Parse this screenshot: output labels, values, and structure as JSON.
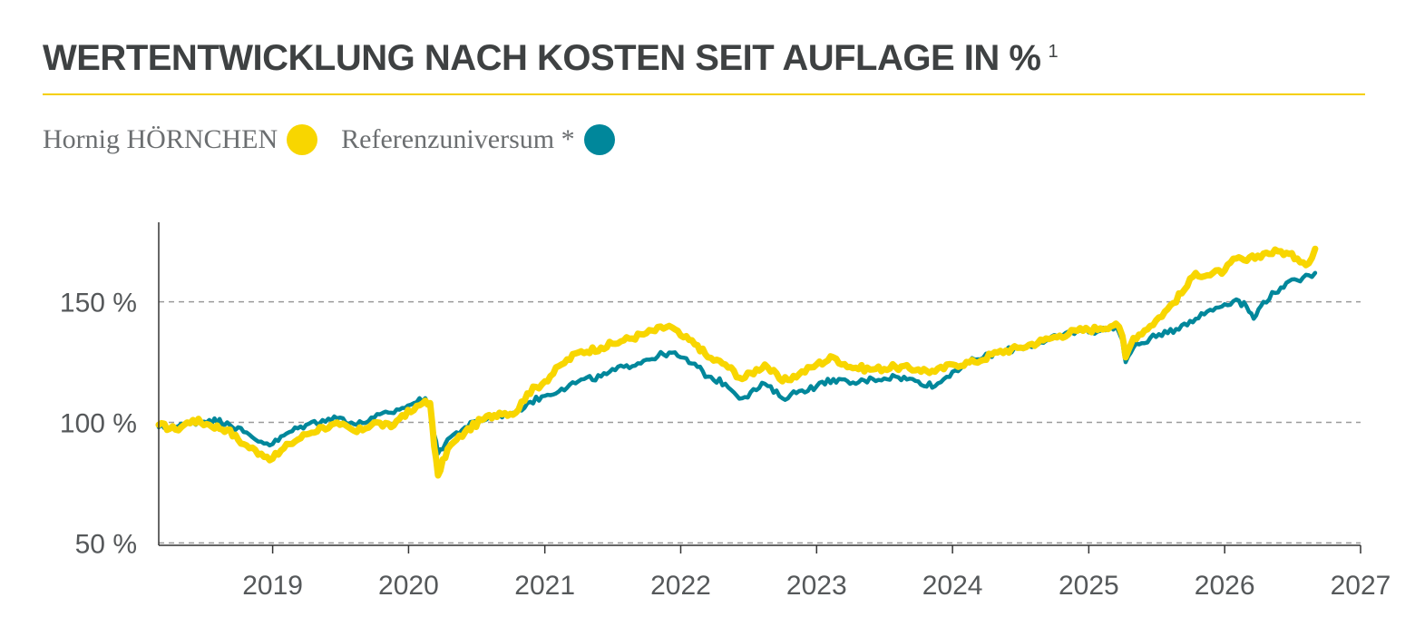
{
  "header": {
    "title": "WERTENTWICKLUNG NACH KOSTEN SEIT AUFLAGE IN %",
    "footnote": "1"
  },
  "colors": {
    "fund": "#f8d600",
    "reference": "#00879b",
    "accent_rule": "#f5cf00",
    "grid": "#9a9a9a",
    "axis": "#333333"
  },
  "legend": {
    "items": [
      {
        "label": "Hornig HÖRNCHEN",
        "color": "#f8d600"
      },
      {
        "label": "Referenzuniversum *",
        "color": "#00879b"
      }
    ]
  },
  "chart_data": {
    "type": "line",
    "xlim": [
      "2018-03-01",
      "2027-01-01"
    ],
    "ylim": [
      49,
      183
    ],
    "grid": "horizontal-dashed",
    "y_ticks": [
      {
        "value": 50,
        "label": "50 %"
      },
      {
        "value": 100,
        "label": "100 %"
      },
      {
        "value": 150,
        "label": "150 %"
      }
    ],
    "x_ticks": [
      {
        "value": "2019-01-01",
        "label": "2019"
      },
      {
        "value": "2020-01-01",
        "label": "2020"
      },
      {
        "value": "2021-01-01",
        "label": "2021"
      },
      {
        "value": "2022-01-01",
        "label": "2022"
      },
      {
        "value": "2023-01-01",
        "label": "2023"
      },
      {
        "value": "2024-01-01",
        "label": "2024"
      },
      {
        "value": "2025-01-01",
        "label": "2025"
      },
      {
        "value": "2026-01-01",
        "label": "2026"
      },
      {
        "value": "2027-01-01",
        "label": "2027"
      }
    ],
    "series": [
      {
        "name": "Hornig HÖRNCHEN",
        "color": "#f8d600",
        "points": [
          [
            "2018-03-01",
            99
          ],
          [
            "2018-04-15",
            97
          ],
          [
            "2018-06-01",
            101
          ],
          [
            "2018-07-15",
            99
          ],
          [
            "2018-09-01",
            97
          ],
          [
            "2018-10-15",
            91
          ],
          [
            "2018-12-01",
            87
          ],
          [
            "2019-01-01",
            85
          ],
          [
            "2019-02-15",
            91
          ],
          [
            "2019-04-01",
            95
          ],
          [
            "2019-05-15",
            98
          ],
          [
            "2019-07-01",
            99
          ],
          [
            "2019-08-15",
            96
          ],
          [
            "2019-10-01",
            100
          ],
          [
            "2019-11-15",
            98
          ],
          [
            "2019-12-15",
            103
          ],
          [
            "2020-01-15",
            105
          ],
          [
            "2020-02-15",
            109
          ],
          [
            "2020-02-28",
            108
          ],
          [
            "2020-03-10",
            90
          ],
          [
            "2020-03-20",
            78
          ],
          [
            "2020-04-15",
            89
          ],
          [
            "2020-06-01",
            96
          ],
          [
            "2020-07-15",
            101
          ],
          [
            "2020-09-01",
            104
          ],
          [
            "2020-10-15",
            104
          ],
          [
            "2020-11-15",
            112
          ],
          [
            "2021-01-01",
            117
          ],
          [
            "2021-02-15",
            124
          ],
          [
            "2021-04-01",
            129
          ],
          [
            "2021-06-01",
            131
          ],
          [
            "2021-08-01",
            134
          ],
          [
            "2021-10-01",
            137
          ],
          [
            "2021-12-01",
            140
          ],
          [
            "2022-01-01",
            136
          ],
          [
            "2022-02-15",
            132
          ],
          [
            "2022-03-15",
            127
          ],
          [
            "2022-05-01",
            124
          ],
          [
            "2022-06-15",
            118
          ],
          [
            "2022-08-15",
            124
          ],
          [
            "2022-10-01",
            117
          ],
          [
            "2022-11-15",
            120
          ],
          [
            "2023-01-01",
            124
          ],
          [
            "2023-02-15",
            127
          ],
          [
            "2023-04-01",
            123
          ],
          [
            "2023-06-01",
            122
          ],
          [
            "2023-08-01",
            123
          ],
          [
            "2023-10-01",
            122
          ],
          [
            "2023-11-15",
            121
          ],
          [
            "2024-01-01",
            124
          ],
          [
            "2024-03-01",
            125
          ],
          [
            "2024-05-01",
            129
          ],
          [
            "2024-07-01",
            131
          ],
          [
            "2024-09-01",
            134
          ],
          [
            "2024-10-15",
            136
          ],
          [
            "2024-12-01",
            138
          ],
          [
            "2025-02-01",
            139
          ],
          [
            "2025-03-15",
            141
          ],
          [
            "2025-04-01",
            136
          ],
          [
            "2025-04-10",
            127
          ],
          [
            "2025-05-01",
            135
          ],
          [
            "2025-06-15",
            140
          ],
          [
            "2025-08-01",
            147
          ],
          [
            "2025-09-15",
            155
          ],
          [
            "2025-10-15",
            162
          ],
          [
            "2025-11-15",
            161
          ],
          [
            "2026-01-01",
            163
          ],
          [
            "2026-02-01",
            168
          ],
          [
            "2026-03-01",
            167
          ],
          [
            "2026-04-15",
            170
          ],
          [
            "2026-06-01",
            171
          ],
          [
            "2026-07-15",
            168
          ],
          [
            "2026-08-15",
            166
          ],
          [
            "2026-09-01",
            172
          ]
        ]
      },
      {
        "name": "Referenzuniversum *",
        "color": "#00879b",
        "points": [
          [
            "2018-03-01",
            98
          ],
          [
            "2018-04-15",
            98
          ],
          [
            "2018-06-01",
            100
          ],
          [
            "2018-07-15",
            101
          ],
          [
            "2018-09-01",
            100
          ],
          [
            "2018-10-15",
            96
          ],
          [
            "2018-12-01",
            92
          ],
          [
            "2019-01-01",
            91
          ],
          [
            "2019-02-15",
            96
          ],
          [
            "2019-04-01",
            99
          ],
          [
            "2019-05-15",
            101
          ],
          [
            "2019-07-01",
            102
          ],
          [
            "2019-08-15",
            99
          ],
          [
            "2019-10-01",
            102
          ],
          [
            "2019-11-15",
            104
          ],
          [
            "2019-12-15",
            106
          ],
          [
            "2020-01-15",
            108
          ],
          [
            "2020-02-15",
            110
          ],
          [
            "2020-02-28",
            108
          ],
          [
            "2020-03-10",
            95
          ],
          [
            "2020-03-20",
            87
          ],
          [
            "2020-04-15",
            93
          ],
          [
            "2020-06-01",
            98
          ],
          [
            "2020-07-15",
            101
          ],
          [
            "2020-09-01",
            103
          ],
          [
            "2020-10-15",
            104
          ],
          [
            "2020-11-15",
            108
          ],
          [
            "2021-01-01",
            111
          ],
          [
            "2021-02-15",
            114
          ],
          [
            "2021-04-01",
            117
          ],
          [
            "2021-06-01",
            119
          ],
          [
            "2021-08-01",
            123
          ],
          [
            "2021-10-01",
            126
          ],
          [
            "2021-12-01",
            129
          ],
          [
            "2022-01-01",
            127
          ],
          [
            "2022-02-15",
            123
          ],
          [
            "2022-03-15",
            119
          ],
          [
            "2022-05-01",
            116
          ],
          [
            "2022-06-15",
            110
          ],
          [
            "2022-08-15",
            116
          ],
          [
            "2022-10-01",
            110
          ],
          [
            "2022-11-15",
            113
          ],
          [
            "2023-01-01",
            115
          ],
          [
            "2023-02-15",
            118
          ],
          [
            "2023-04-01",
            116
          ],
          [
            "2023-06-01",
            118
          ],
          [
            "2023-08-01",
            119
          ],
          [
            "2023-10-01",
            117
          ],
          [
            "2023-11-15",
            115
          ],
          [
            "2024-01-01",
            121
          ],
          [
            "2024-03-01",
            126
          ],
          [
            "2024-05-01",
            129
          ],
          [
            "2024-07-01",
            131
          ],
          [
            "2024-09-01",
            133
          ],
          [
            "2024-10-15",
            136
          ],
          [
            "2024-12-01",
            138
          ],
          [
            "2025-02-01",
            138
          ],
          [
            "2025-03-15",
            140
          ],
          [
            "2025-04-01",
            134
          ],
          [
            "2025-04-10",
            125
          ],
          [
            "2025-05-01",
            131
          ],
          [
            "2025-06-15",
            135
          ],
          [
            "2025-08-01",
            137
          ],
          [
            "2025-09-15",
            141
          ],
          [
            "2025-10-15",
            143
          ],
          [
            "2025-11-15",
            146
          ],
          [
            "2026-01-01",
            149
          ],
          [
            "2026-02-01",
            151
          ],
          [
            "2026-03-01",
            148
          ],
          [
            "2026-03-20",
            143
          ],
          [
            "2026-04-15",
            150
          ],
          [
            "2026-06-01",
            156
          ],
          [
            "2026-07-15",
            159
          ],
          [
            "2026-08-15",
            161
          ],
          [
            "2026-09-01",
            162
          ]
        ]
      }
    ]
  }
}
